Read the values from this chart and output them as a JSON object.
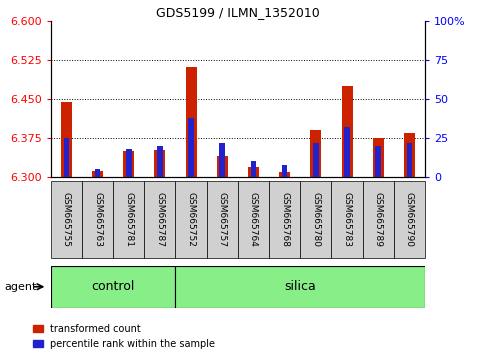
{
  "title": "GDS5199 / ILMN_1352010",
  "samples": [
    "GSM665755",
    "GSM665763",
    "GSM665781",
    "GSM665787",
    "GSM665752",
    "GSM665757",
    "GSM665764",
    "GSM665768",
    "GSM665780",
    "GSM665783",
    "GSM665789",
    "GSM665790"
  ],
  "groups": [
    "control",
    "control",
    "control",
    "control",
    "silica",
    "silica",
    "silica",
    "silica",
    "silica",
    "silica",
    "silica",
    "silica"
  ],
  "transformed_count": [
    6.445,
    6.312,
    6.35,
    6.352,
    6.512,
    6.34,
    6.32,
    6.31,
    6.39,
    6.475,
    6.375,
    6.385
  ],
  "percentile_rank": [
    25,
    5,
    18,
    20,
    38,
    22,
    10,
    8,
    22,
    32,
    20,
    22
  ],
  "y_min": 6.3,
  "y_max": 6.6,
  "y_ticks": [
    6.3,
    6.375,
    6.45,
    6.525,
    6.6
  ],
  "y2_ticks": [
    0,
    25,
    50,
    75,
    100
  ],
  "bar_color_red": "#cc2200",
  "bar_color_blue": "#2222cc",
  "label_box_color": "#d0d0d0",
  "control_color": "#88ee88",
  "silica_color": "#88ee88",
  "group_label_control": "control",
  "group_label_silica": "silica",
  "agent_label": "agent",
  "legend_red": "transformed count",
  "legend_blue": "percentile rank within the sample",
  "bar_width": 0.35,
  "blue_bar_width": 0.18,
  "background_color": "#ffffff"
}
